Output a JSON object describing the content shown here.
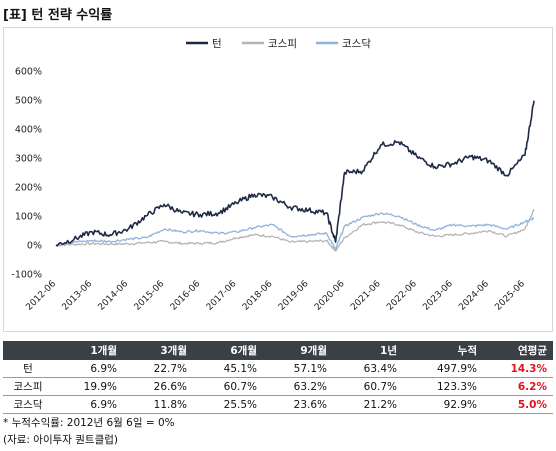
{
  "page": {
    "title": "[표] 턴 전략 수익률"
  },
  "chart_data": {
    "type": "line",
    "title": "",
    "legend": {
      "placement": "top-center",
      "entries": [
        "턴",
        "코스피",
        "코스닥"
      ]
    },
    "y_ticks": [
      "600%",
      "500%",
      "400%",
      "300%",
      "200%",
      "100%",
      "0%",
      "-100%"
    ],
    "ylim": [
      -100,
      600
    ],
    "grid": false,
    "x_tick_labels": [
      "2012-06",
      "2013-06",
      "2014-06",
      "2015-06",
      "2016-06",
      "2017-06",
      "2018-06",
      "2019-06",
      "2020-06",
      "2021-06",
      "2022-06",
      "2023-06",
      "2024-06",
      "2025-06"
    ],
    "x": [
      "2012-06",
      "2012-12",
      "2013-06",
      "2013-12",
      "2014-06",
      "2014-12",
      "2015-06",
      "2015-12",
      "2016-06",
      "2016-12",
      "2017-06",
      "2017-12",
      "2018-06",
      "2018-12",
      "2019-06",
      "2019-12",
      "2020-03",
      "2020-06",
      "2020-12",
      "2021-06",
      "2021-12",
      "2022-06",
      "2022-12",
      "2023-06",
      "2023-12",
      "2024-06",
      "2024-12",
      "2025-06",
      "2025-09"
    ],
    "series": [
      {
        "name": "턴",
        "color": "#1f2a44",
        "values": [
          0,
          20,
          45,
          35,
          55,
          100,
          140,
          110,
          105,
          110,
          145,
          175,
          165,
          130,
          120,
          110,
          10,
          250,
          255,
          345,
          355,
          305,
          270,
          280,
          305,
          290,
          240,
          310,
          498
        ]
      },
      {
        "name": "코스피",
        "color": "#b5b5b5",
        "values": [
          0,
          2,
          5,
          3,
          4,
          8,
          12,
          5,
          6,
          8,
          25,
          35,
          30,
          10,
          12,
          15,
          -20,
          25,
          70,
          80,
          70,
          45,
          30,
          35,
          40,
          50,
          30,
          55,
          123
        ]
      },
      {
        "name": "코스닥",
        "color": "#8fb4dc",
        "values": [
          0,
          10,
          15,
          12,
          20,
          25,
          55,
          45,
          50,
          40,
          45,
          60,
          70,
          30,
          35,
          40,
          -15,
          65,
          95,
          110,
          100,
          70,
          50,
          70,
          65,
          70,
          55,
          80,
          93
        ]
      }
    ]
  },
  "table": {
    "headers": [
      "",
      "1개월",
      "3개월",
      "6개월",
      "9개월",
      "1년",
      "누적",
      "연평균"
    ],
    "rows": [
      {
        "name": "턴",
        "cells": [
          "6.9%",
          "22.7%",
          "45.1%",
          "57.1%",
          "63.4%",
          "497.9%",
          "14.3%"
        ]
      },
      {
        "name": "코스피",
        "cells": [
          "19.9%",
          "26.6%",
          "60.7%",
          "63.2%",
          "60.7%",
          "123.3%",
          "6.2%"
        ]
      },
      {
        "name": "코스닥",
        "cells": [
          "6.9%",
          "11.8%",
          "25.5%",
          "23.6%",
          "21.2%",
          "92.9%",
          "5.0%"
        ]
      }
    ]
  },
  "notes": {
    "cumulative": "* 누적수익률: 2012년 6월 6일 = 0%",
    "source": "(자료: 아이투자 퀀트클럽)"
  }
}
